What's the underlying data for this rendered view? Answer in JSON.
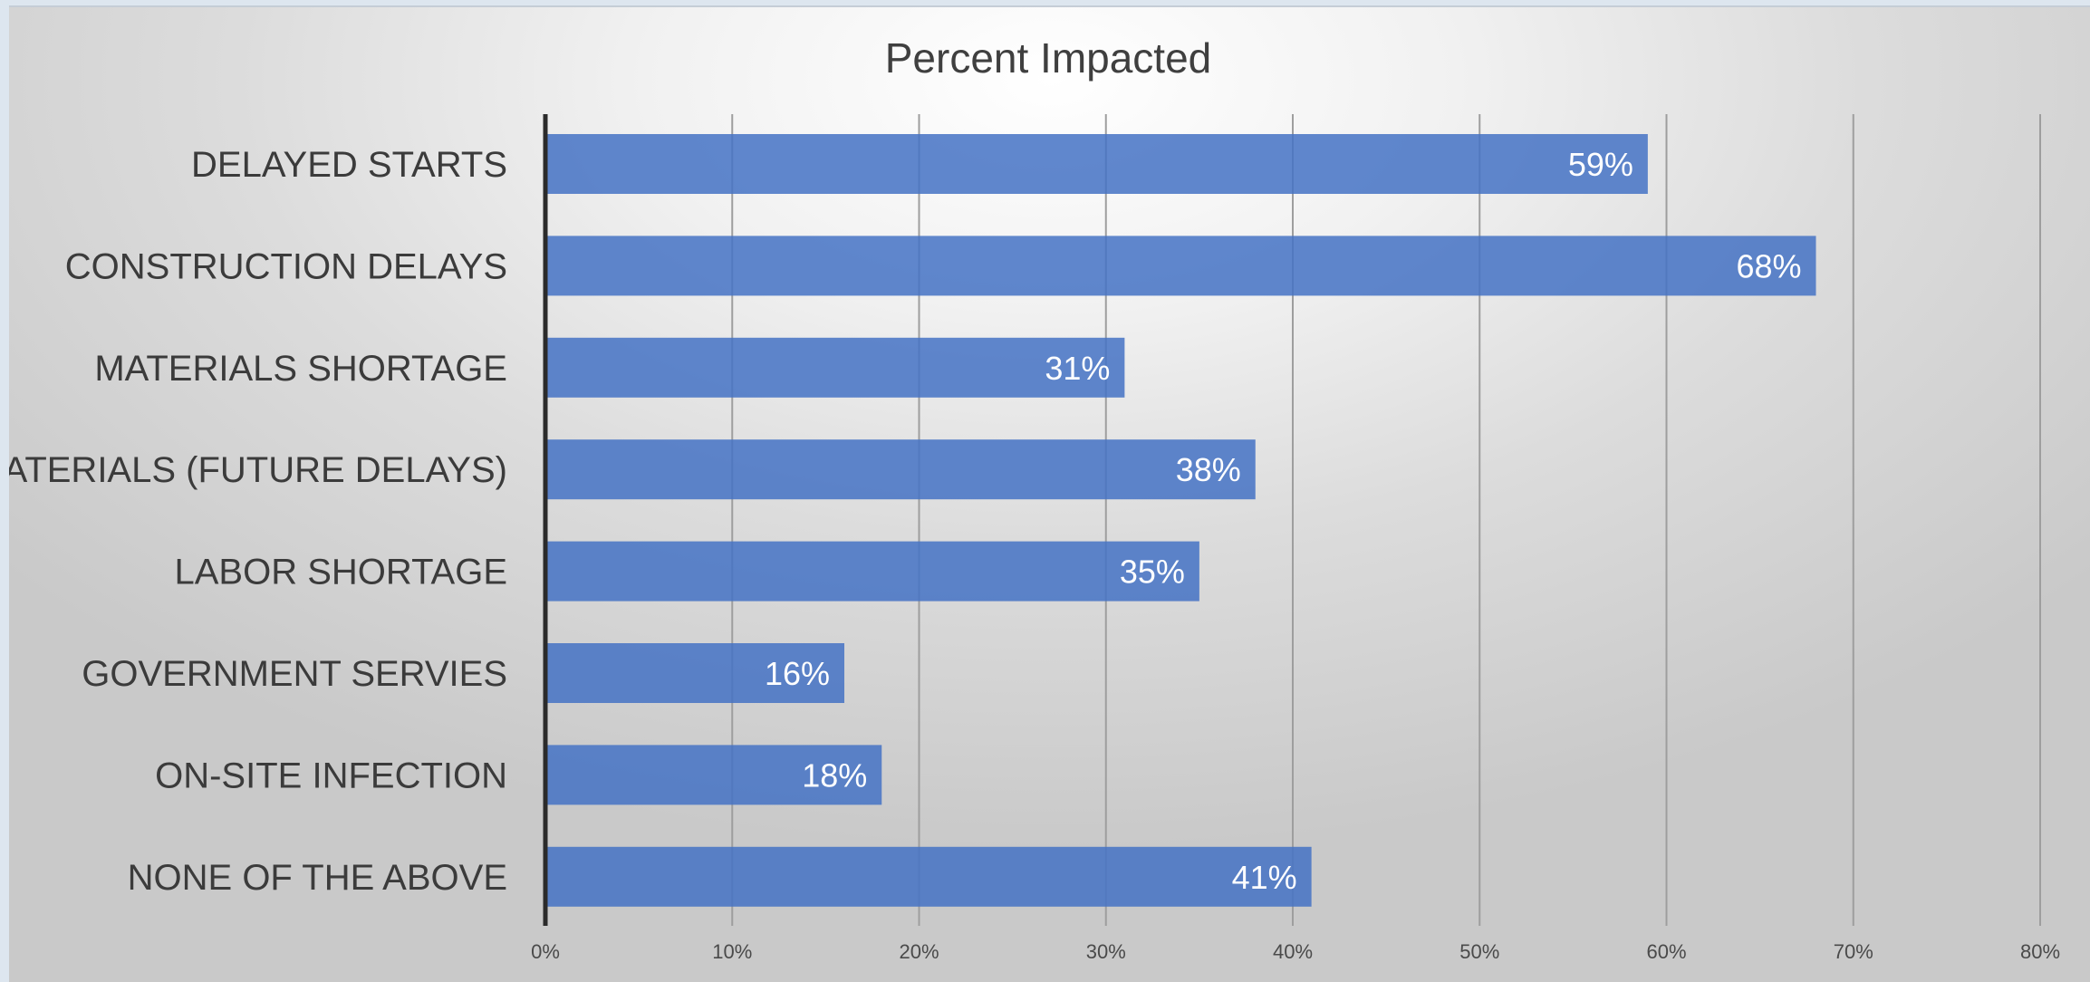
{
  "chart_data": {
    "type": "bar",
    "orientation": "horizontal",
    "title": "Percent Impacted",
    "categories": [
      "DELAYED STARTS",
      "CONSTRUCTION DELAYS",
      "MATERIALS SHORTAGE",
      "MATERIALS (FUTURE DELAYS)",
      "LABOR SHORTAGE",
      "GOVERNMENT SERVIES",
      "ON-SITE INFECTION",
      "NONE OF THE ABOVE"
    ],
    "values": [
      59,
      68,
      31,
      38,
      35,
      16,
      18,
      41
    ],
    "data_labels": [
      "59%",
      "68%",
      "31%",
      "38%",
      "35%",
      "16%",
      "18%",
      "41%"
    ],
    "xlim": [
      0,
      80
    ],
    "x_ticks": [
      0,
      10,
      20,
      30,
      40,
      50,
      60,
      70,
      80
    ],
    "x_tick_labels": [
      "0%",
      "10%",
      "20%",
      "30%",
      "40%",
      "50%",
      "60%",
      "70%",
      "80%"
    ],
    "grid": "vertical",
    "legend": "none",
    "bar_color": "#4472c4"
  }
}
